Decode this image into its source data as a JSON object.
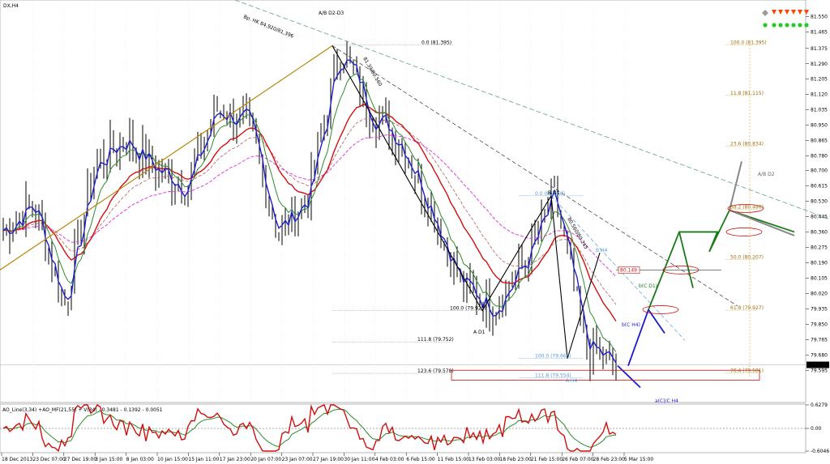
{
  "window": {
    "symbol_label": "DX,H4",
    "bar_interval": "H4"
  },
  "chart_data": [
    {
      "type": "line",
      "name": "price",
      "series": [
        {
          "name": "close",
          "color": "#000000",
          "x": [
            "18 Dec 2013",
            "23 Dec 07:00",
            "27 Dec 19:00",
            "3 Jan 15:00",
            "8 Jan 03:00",
            "10 Jan 15:00",
            "15 Jan 11:00",
            "17 Jan 23:00",
            "20 Jan 07:00",
            "23 Jan 07:00",
            "27 Jan 19:00",
            "30 Jan 11:00",
            "4 Feb 03:00",
            "6 Feb 15:00",
            "11 Feb 15:00",
            "13 Feb 03:00",
            "18 Feb 23:00",
            "21 Feb 15:00",
            "26 Feb 07:00",
            "28 Feb 23:00",
            "5 Mar 15:00"
          ],
          "values": [
            80.37,
            80.52,
            79.95,
            80.74,
            80.88,
            80.7,
            80.62,
            81.05,
            80.95,
            80.35,
            80.58,
            81.39,
            81.02,
            80.86,
            80.48,
            80.05,
            79.95,
            80.18,
            80.56,
            79.72,
            79.62
          ]
        },
        {
          "name": "ema-fast",
          "color": "#1f1fd0"
        },
        {
          "name": "ema-mid",
          "color": "#2e8b2e"
        },
        {
          "name": "ema-slow",
          "color": "#d01010"
        },
        {
          "name": "ema-slow-dash",
          "color": "#b06060"
        },
        {
          "name": "ema-200",
          "color": "#e040e0"
        }
      ],
      "y_ticks": [
        "81.550",
        "81.465",
        "81.375",
        "81.290",
        "81.205",
        "81.120",
        "81.035",
        "80.950",
        "80.865",
        "80.780",
        "80.700",
        "80.615",
        "80.530",
        "80.445",
        "80.360",
        "80.275",
        "80.190",
        "80.105",
        "80.020",
        "79.935",
        "79.850",
        "79.765",
        "79.680",
        "79.595"
      ],
      "x_ticks": [
        "18 Dec 2013",
        "23 Dec 07:00",
        "27 Dec 19:00",
        "3 Jan 15:00",
        "8 Jan 03:00",
        "10 Jan 15:00",
        "15 Jan 11:00",
        "17 Jan 23:00",
        "20 Jan 07:00",
        "23 Jan 07:00",
        "27 Jan 19:00",
        "30 Jan 11:00",
        "4 Feb 03:00",
        "6 Feb 15:00",
        "11 Feb 15:00",
        "13 Feb 03:00",
        "18 Feb 23:00",
        "21 Feb 15:00",
        "26 Feb 07:00",
        "28 Feb 23:00",
        "5 Mar 15:00"
      ],
      "ylim": [
        79.52,
        81.58
      ],
      "current_price": "79.625",
      "horizontal_levels": [
        {
          "label": "80.149",
          "value": 80.149,
          "color": "#d01010"
        }
      ],
      "annotations": {
        "ab_d2_d3": "A/B D2-D3",
        "trend_hk": "Bp. HK 84,920/81,396",
        "trend_560": "81.39/80.560",
        "trend_bd1": "80.560/80.245",
        "b_d1": "B D1",
        "a_d1": "A D1",
        "b_h4": "B H4",
        "a_h4": "A H4",
        "b_c_d1": "b(C D1)",
        "b_c_h4": "b(C H4)",
        "a_c_h4": "a(C)/C H4",
        "ab_d2": "A/B D2"
      },
      "fib_left": [
        {
          "label": "0.0 (81.395)"
        },
        {
          "label": "100.0 (79.925)"
        },
        {
          "label": "111.8 (79.752)"
        },
        {
          "label": "123.6 (79.578)"
        }
      ],
      "fib_mid": [
        {
          "label": "0.0 (80.560)"
        },
        {
          "label": "100.0 (79.660)"
        },
        {
          "label": "111.8 (79.554)"
        }
      ],
      "fib_right": [
        {
          "label": "100.0 (81.395)"
        },
        {
          "label": "11.8 (81.115)"
        },
        {
          "label": "23.6 (80.834)"
        },
        {
          "label": "38.2 (80.486)"
        },
        {
          "label": "50.0 (80.207)"
        },
        {
          "label": "61.8 (79.927)"
        },
        {
          "label": "76.4 (79.581)"
        }
      ]
    },
    {
      "type": "line",
      "name": "oscillator",
      "header": "AO_Line(3,34) +AO_MF(21,55) + V(34) - 0.3481 - 0.1392 - 0.0051",
      "series": [
        {
          "name": "ao-line",
          "color": "#d01010"
        },
        {
          "name": "ao-mf",
          "color": "#2e8b2e"
        }
      ],
      "y_ticks": [
        "0.6279",
        "0.00",
        "-0.6046"
      ],
      "ylim": [
        -0.6046,
        0.6279
      ]
    }
  ],
  "palette": {
    "signal_gray": "#999999",
    "signal_arrow": "#ff4400",
    "signal_dot": "#22cc22"
  }
}
